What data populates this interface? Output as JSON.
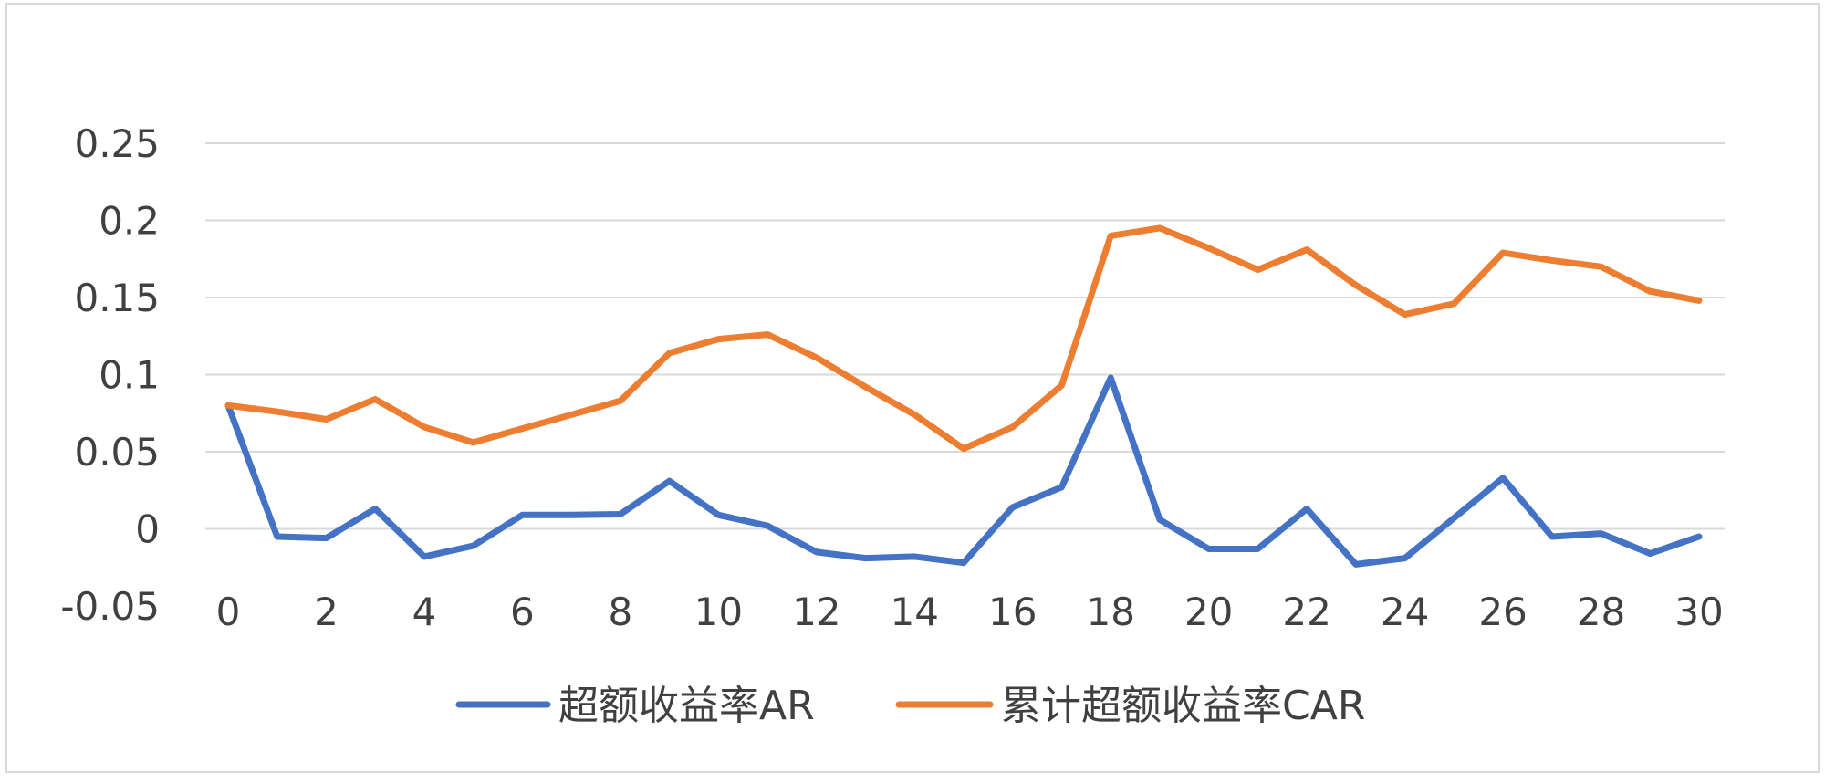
{
  "chart_data": {
    "type": "line",
    "title": "",
    "xlabel": "",
    "ylabel": "",
    "x": [
      0,
      1,
      2,
      3,
      4,
      5,
      6,
      7,
      8,
      9,
      10,
      11,
      12,
      13,
      14,
      15,
      16,
      17,
      18,
      19,
      20,
      21,
      22,
      23,
      24,
      25,
      26,
      27,
      28,
      29,
      30
    ],
    "x_ticks": [
      0,
      2,
      4,
      6,
      8,
      10,
      12,
      14,
      16,
      18,
      20,
      22,
      24,
      26,
      28,
      30
    ],
    "x_tick_labels": [
      "0",
      "2",
      "4",
      "6",
      "8",
      "10",
      "12",
      "14",
      "16",
      "18",
      "20",
      "22",
      "24",
      "26",
      "28",
      "30"
    ],
    "xlim": [
      0,
      30
    ],
    "ylim": [
      -0.05,
      0.25
    ],
    "y_ticks": [
      -0.05,
      0,
      0.05,
      0.1,
      0.15,
      0.2,
      0.25
    ],
    "y_tick_labels": [
      "-0.05",
      "0",
      "0.05",
      "0.1",
      "0.15",
      "0.2",
      "0.25"
    ],
    "grid": true,
    "legend_position": "bottom",
    "series": [
      {
        "name": "超额收益率AR",
        "color": "#4472C4",
        "values": [
          0.08,
          -0.005,
          -0.006,
          0.013,
          -0.018,
          -0.011,
          0.009,
          0.009,
          0.0095,
          0.031,
          0.009,
          0.002,
          -0.015,
          -0.019,
          -0.018,
          -0.022,
          0.014,
          0.027,
          0.098,
          0.006,
          -0.013,
          -0.013,
          0.013,
          -0.023,
          -0.019,
          0.007,
          0.033,
          -0.005,
          -0.003,
          -0.016,
          -0.005
        ]
      },
      {
        "name": "累计超额收益率CAR",
        "color": "#ED7D31",
        "values": [
          0.08,
          0.076,
          0.071,
          0.084,
          0.066,
          0.056,
          0.065,
          0.074,
          0.083,
          0.114,
          0.123,
          0.126,
          0.111,
          0.092,
          0.074,
          0.052,
          0.066,
          0.093,
          0.19,
          0.195,
          0.182,
          0.168,
          0.181,
          0.158,
          0.139,
          0.146,
          0.179,
          0.174,
          0.17,
          0.154,
          0.148
        ]
      }
    ]
  }
}
